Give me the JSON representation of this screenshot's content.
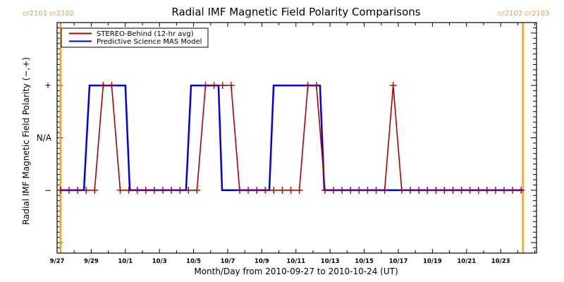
{
  "chart_data": {
    "type": "line",
    "title": "Radial IMF Magnetic Field Polarity Comparisons",
    "xlabel": "Month/Day from 2010-09-27 to 2010-10-24 (UT)",
    "ylabel": "Radial IMF Magnetic Field Polarity (−,+)",
    "x_units": "days since 2010-09-27 00:00 UT",
    "xlim": [
      0,
      28.1
    ],
    "ylim": [
      -2.2,
      2.2
    ],
    "x_ticks": [
      {
        "value": 0,
        "label": "9/27"
      },
      {
        "value": 2,
        "label": "9/29"
      },
      {
        "value": 4,
        "label": "10/1"
      },
      {
        "value": 6,
        "label": "10/3"
      },
      {
        "value": 8,
        "label": "10/5"
      },
      {
        "value": 10,
        "label": "10/7"
      },
      {
        "value": 12,
        "label": "10/9"
      },
      {
        "value": 14,
        "label": "10/11"
      },
      {
        "value": 16,
        "label": "10/13"
      },
      {
        "value": 18,
        "label": "10/15"
      },
      {
        "value": 20,
        "label": "10/17"
      },
      {
        "value": 22,
        "label": "10/19"
      },
      {
        "value": 24,
        "label": "10/21"
      },
      {
        "value": 26,
        "label": "10/23"
      }
    ],
    "y_ticks": [
      {
        "value": 1,
        "label": "+"
      },
      {
        "value": 0,
        "label": "N/A"
      },
      {
        "value": -1,
        "label": "−"
      }
    ],
    "legend_position": "top-left",
    "carrington_markers": [
      {
        "day": 0.2,
        "label": "cr2101 cr2102",
        "color": "#f5a030"
      },
      {
        "day": 27.3,
        "label": "cr2102 cr2103",
        "color": "#f5a030"
      }
    ],
    "series": [
      {
        "name": "STEREO-Behind (12-hr avg)",
        "color": "#b00000",
        "markers": true,
        "x_start": 0.2,
        "x_step": 0.5,
        "values": [
          -1,
          -1,
          -1,
          -1,
          -1,
          1,
          1,
          -1,
          -1,
          -1,
          -1,
          -1,
          -1,
          -1,
          -1,
          -1,
          -1,
          1,
          1,
          1,
          1,
          -1,
          -1,
          -1,
          -1,
          -1,
          -1,
          -1,
          -1,
          1,
          1,
          -1,
          -1,
          -1,
          -1,
          -1,
          -1,
          -1,
          -1,
          1,
          -1,
          -1,
          -1,
          -1,
          -1,
          -1,
          -1,
          -1,
          -1,
          -1,
          -1,
          -1,
          -1,
          -1,
          -1
        ]
      },
      {
        "name": "Predictive Science MAS Model",
        "color": "#0000e0",
        "markers": false,
        "points": [
          [
            0.2,
            -1
          ],
          [
            1.57,
            -1
          ],
          [
            1.9,
            1
          ],
          [
            4.0,
            1
          ],
          [
            4.26,
            -1
          ],
          [
            7.56,
            -1
          ],
          [
            7.85,
            1
          ],
          [
            9.46,
            1
          ],
          [
            9.67,
            -1
          ],
          [
            12.44,
            -1
          ],
          [
            12.69,
            1
          ],
          [
            15.41,
            1
          ],
          [
            15.66,
            -1
          ],
          [
            27.3,
            -1
          ]
        ]
      }
    ]
  }
}
